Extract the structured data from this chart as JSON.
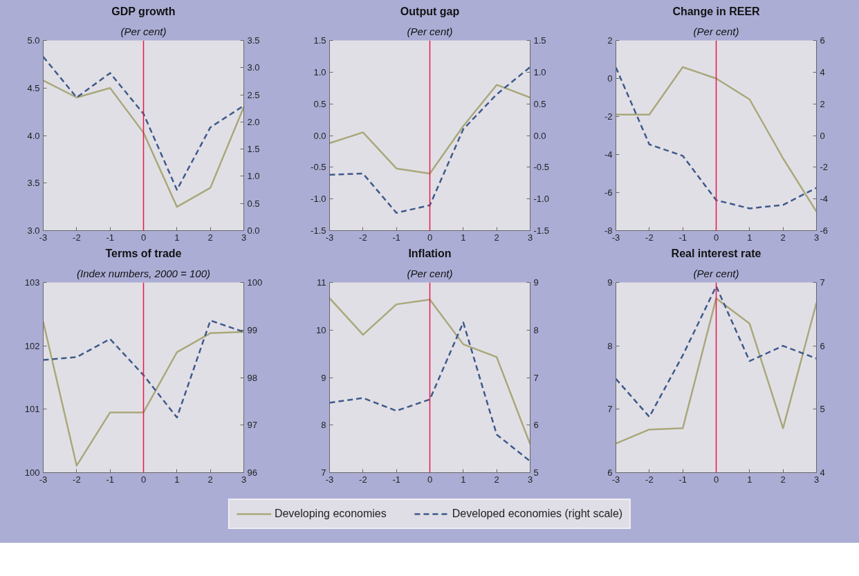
{
  "chart_data": [
    {
      "type": "line",
      "title": "GDP growth",
      "subtitle": "(Per cent)",
      "x": [
        -3,
        -2,
        -1,
        0,
        1,
        2,
        3
      ],
      "xlim": [
        -3,
        3
      ],
      "xticks": [
        -3,
        -2,
        -1,
        0,
        1,
        2,
        3
      ],
      "ylim": [
        3.0,
        5.0
      ],
      "yticks": [
        {
          "value": 3.0,
          "label": "3.0"
        },
        {
          "value": 3.5,
          "label": "3.5"
        },
        {
          "value": 4.0,
          "label": "4.0"
        },
        {
          "value": 4.5,
          "label": "4.5"
        },
        {
          "value": 5.0,
          "label": "5.0"
        }
      ],
      "y2lim": [
        0.0,
        3.5
      ],
      "y2ticks": [
        {
          "value": 0.0,
          "label": "0.0"
        },
        {
          "value": 0.5,
          "label": "0.5"
        },
        {
          "value": 1.0,
          "label": "1.0"
        },
        {
          "value": 1.5,
          "label": "1.5"
        },
        {
          "value": 2.0,
          "label": "2.0"
        },
        {
          "value": 2.5,
          "label": "2.5"
        },
        {
          "value": 3.0,
          "label": "3.0"
        },
        {
          "value": 3.5,
          "label": "3.5"
        }
      ],
      "grid": false,
      "series": [
        {
          "color": "#a9a87a",
          "line_style": "solid",
          "values": [
            4.58,
            4.4,
            4.5,
            4.03,
            3.25,
            3.45,
            4.3
          ]
        },
        {
          "color": "#3e5a8a",
          "line_style": "dashed",
          "axis": "y2",
          "values": [
            3.2,
            2.45,
            2.9,
            2.15,
            0.75,
            1.9,
            2.3
          ]
        }
      ],
      "ref_lines": [
        {
          "axis": "x",
          "value": 0,
          "color": "#e8174a"
        }
      ]
    },
    {
      "type": "line",
      "title": "Output gap",
      "subtitle": "(Per cent)",
      "x": [
        -3,
        -2,
        -1,
        0,
        1,
        2,
        3
      ],
      "xlim": [
        -3,
        3
      ],
      "xticks": [
        -3,
        -2,
        -1,
        0,
        1,
        2,
        3
      ],
      "ylim": [
        -1.5,
        1.5
      ],
      "yticks": [
        {
          "value": -1.5,
          "label": "-1.5"
        },
        {
          "value": -1.0,
          "label": "-1.0"
        },
        {
          "value": -0.5,
          "label": "-0.5"
        },
        {
          "value": 0.0,
          "label": "0.0"
        },
        {
          "value": 0.5,
          "label": "0.5"
        },
        {
          "value": 1.0,
          "label": "1.0"
        },
        {
          "value": 1.5,
          "label": "1.5"
        }
      ],
      "y2lim": [
        -1.5,
        1.5
      ],
      "y2ticks": [
        {
          "value": -1.5,
          "label": "-1.5"
        },
        {
          "value": -1.0,
          "label": "-1.0"
        },
        {
          "value": -0.5,
          "label": "-0.5"
        },
        {
          "value": 0.0,
          "label": "0.0"
        },
        {
          "value": 0.5,
          "label": "0.5"
        },
        {
          "value": 1.0,
          "label": "1.0"
        },
        {
          "value": 1.5,
          "label": "1.5"
        }
      ],
      "grid": false,
      "series": [
        {
          "color": "#a9a87a",
          "line_style": "solid",
          "values": [
            -0.12,
            0.05,
            -0.52,
            -0.6,
            0.15,
            0.8,
            0.6
          ]
        },
        {
          "color": "#3e5a8a",
          "line_style": "dashed",
          "axis": "y2",
          "values": [
            -0.62,
            -0.6,
            -1.22,
            -1.1,
            0.1,
            0.65,
            1.08
          ]
        }
      ],
      "ref_lines": [
        {
          "axis": "x",
          "value": 0,
          "color": "#e8174a"
        }
      ]
    },
    {
      "type": "line",
      "title": "Change in REER",
      "subtitle": "(Per cent)",
      "x": [
        -3,
        -2,
        -1,
        0,
        1,
        2,
        3
      ],
      "xlim": [
        -3,
        3
      ],
      "xticks": [
        -3,
        -2,
        -1,
        0,
        1,
        2,
        3
      ],
      "ylim": [
        -8,
        2
      ],
      "yticks": [
        -8,
        -6,
        -4,
        -2,
        0,
        2
      ],
      "y2lim": [
        -6,
        6
      ],
      "y2ticks": [
        -6,
        -4,
        -2,
        0,
        2,
        4,
        6
      ],
      "grid": false,
      "series": [
        {
          "color": "#a9a87a",
          "line_style": "solid",
          "values": [
            -1.9,
            -1.9,
            0.6,
            0.0,
            -1.1,
            -4.2,
            -7.0
          ]
        },
        {
          "color": "#3e5a8a",
          "line_style": "dashed",
          "axis": "y2",
          "values": [
            4.3,
            -0.56,
            -1.28,
            -4.08,
            -4.6,
            -4.38,
            -3.3
          ]
        }
      ],
      "ref_lines": [
        {
          "axis": "x",
          "value": 0,
          "color": "#e8174a"
        }
      ]
    },
    {
      "type": "line",
      "title": "Terms of trade",
      "subtitle": "(Index numbers, 2000 = 100)",
      "x": [
        -3,
        -2,
        -1,
        0,
        1,
        2,
        3
      ],
      "xlim": [
        -3,
        3
      ],
      "xticks": [
        -3,
        -2,
        -1,
        0,
        1,
        2,
        3
      ],
      "ylim": [
        100,
        103
      ],
      "yticks": [
        100,
        101,
        102,
        103
      ],
      "y2lim": [
        96,
        100
      ],
      "y2ticks": [
        96,
        97,
        98,
        99,
        100
      ],
      "grid": false,
      "series": [
        {
          "color": "#a9a87a",
          "line_style": "solid",
          "values": [
            102.38,
            100.11,
            100.95,
            100.95,
            101.9,
            102.2,
            102.22
          ]
        },
        {
          "color": "#3e5a8a",
          "line_style": "dashed",
          "axis": "y2",
          "values": [
            98.37,
            98.43,
            98.81,
            98.05,
            97.16,
            99.2,
            98.96
          ]
        }
      ],
      "ref_lines": [
        {
          "axis": "x",
          "value": 0,
          "color": "#e8174a"
        }
      ]
    },
    {
      "type": "line",
      "title": "Inflation",
      "subtitle": "(Per cent)",
      "x": [
        -3,
        -2,
        -1,
        0,
        1,
        2,
        3
      ],
      "xlim": [
        -3,
        3
      ],
      "xticks": [
        -3,
        -2,
        -1,
        0,
        1,
        2,
        3
      ],
      "ylim": [
        7,
        11
      ],
      "yticks": [
        7,
        8,
        9,
        10,
        11
      ],
      "y2lim": [
        5,
        9
      ],
      "y2ticks": [
        5,
        6,
        7,
        8,
        9
      ],
      "grid": false,
      "series": [
        {
          "color": "#a9a87a",
          "line_style": "solid",
          "values": [
            10.67,
            9.9,
            10.54,
            10.64,
            9.7,
            9.43,
            7.6
          ]
        },
        {
          "color": "#3e5a8a",
          "line_style": "dashed",
          "axis": "y2",
          "values": [
            6.47,
            6.57,
            6.3,
            6.54,
            8.16,
            5.8,
            5.24
          ]
        }
      ],
      "ref_lines": [
        {
          "axis": "x",
          "value": 0,
          "color": "#e8174a"
        }
      ]
    },
    {
      "type": "line",
      "title": "Real interest rate",
      "subtitle": "(Per cent)",
      "x": [
        -3,
        -2,
        -1,
        0,
        1,
        2,
        3
      ],
      "xlim": [
        -3,
        3
      ],
      "xticks": [
        -3,
        -2,
        -1,
        0,
        1,
        2,
        3
      ],
      "ylim": [
        6,
        9
      ],
      "yticks": [
        6,
        7,
        8,
        9
      ],
      "y2lim": [
        4,
        7
      ],
      "y2ticks": [
        4,
        5,
        6,
        7
      ],
      "grid": false,
      "legend": "bottom",
      "series": [
        {
          "name": "Developing economies",
          "color": "#a9a87a",
          "line_style": "solid",
          "values": [
            6.46,
            6.68,
            6.7,
            8.75,
            8.35,
            6.7,
            8.68
          ]
        },
        {
          "name": "Developed economies (right scale)",
          "color": "#3e5a8a",
          "line_style": "dashed",
          "axis": "y2",
          "values": [
            5.48,
            4.88,
            5.85,
            6.94,
            5.76,
            6.0,
            5.8
          ]
        }
      ],
      "ref_lines": [
        {
          "axis": "x",
          "value": 0,
          "color": "#e8174a"
        }
      ]
    }
  ]
}
